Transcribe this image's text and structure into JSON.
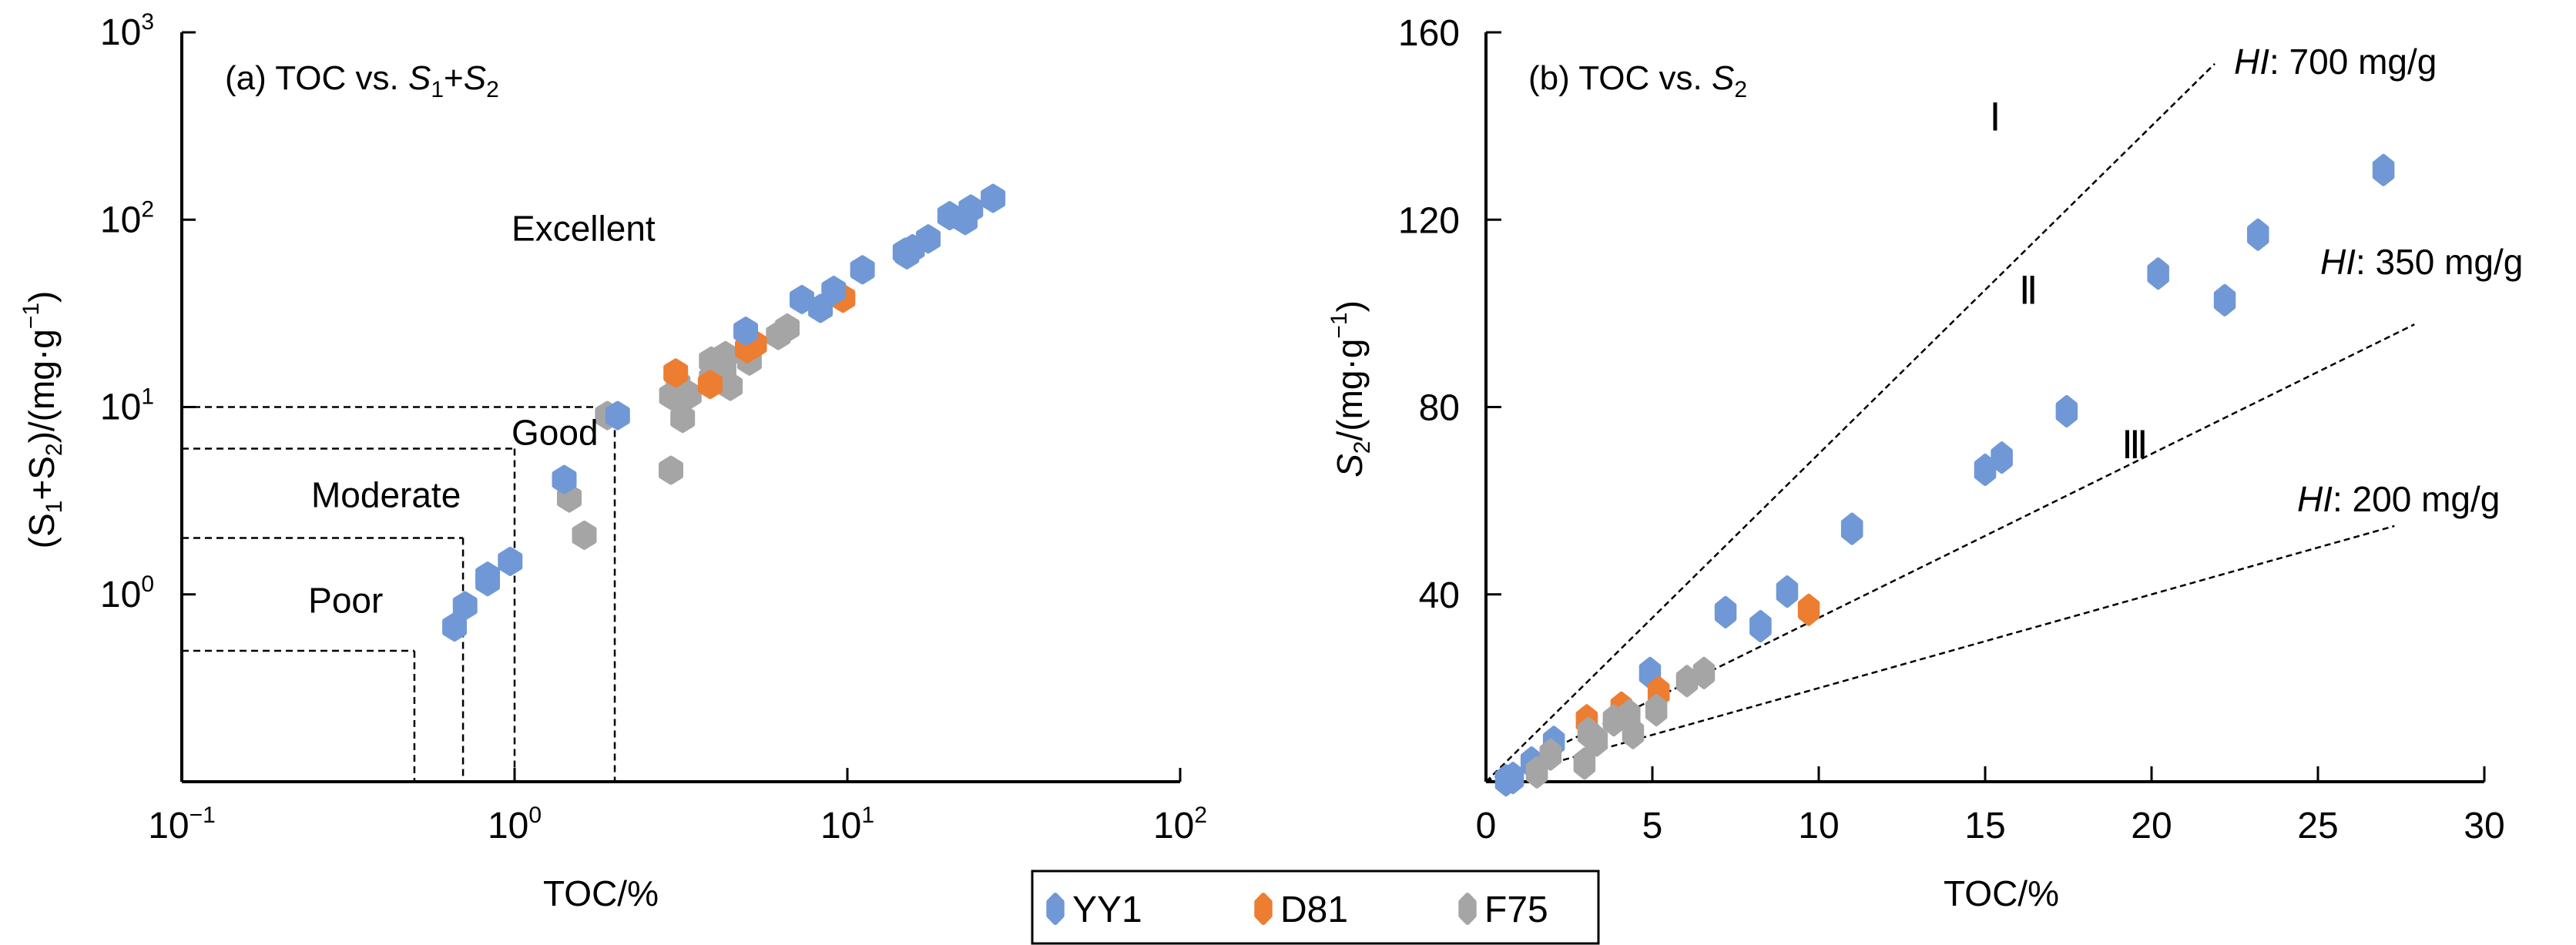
{
  "colors": {
    "YY1": "#7098D6",
    "D81": "#ED7D31",
    "F75": "#A5A5A5"
  },
  "legend": {
    "entries": [
      {
        "name": "YY1",
        "color": "#7098D6"
      },
      {
        "name": "D81",
        "color": "#ED7D31"
      },
      {
        "name": "F75",
        "color": "#A5A5A5"
      }
    ]
  },
  "chart_data": [
    {
      "type": "scatter",
      "id": "a",
      "title": {
        "prefix": "(a) TOC vs. ",
        "s1": "S",
        "s1_sub": "1",
        "plus": "+",
        "s2": "S",
        "s2_sub": "2"
      },
      "xlabel": "TOC/%",
      "ylabel": {
        "open": "(S",
        "sub1": "1",
        "mid": "+S",
        "sub2": "2",
        "close": ")/(mg·g",
        "sup": "−1",
        "end": ")"
      },
      "xscale": "log",
      "yscale": "log",
      "xlim": [
        0.1,
        100
      ],
      "ylim": [
        0.1,
        1000
      ],
      "xticks": [
        {
          "value": 0.1,
          "base": "10",
          "exp": "−1"
        },
        {
          "value": 1,
          "base": "10",
          "exp": "0"
        },
        {
          "value": 10,
          "base": "10",
          "exp": "1"
        },
        {
          "value": 100,
          "base": "10",
          "exp": "2"
        }
      ],
      "yticks": [
        {
          "value": 1,
          "base": "10",
          "exp": "0"
        },
        {
          "value": 10,
          "base": "10",
          "exp": "1"
        },
        {
          "value": 100,
          "base": "10",
          "exp": "2"
        },
        {
          "value": 1000,
          "base": "10",
          "exp": "3"
        }
      ],
      "grid": false,
      "thresholds": [
        {
          "toc": 0.5,
          "s1s2": 0.5
        },
        {
          "toc": 0.7,
          "s1s2": 2
        },
        {
          "toc": 1.0,
          "s1s2": 6
        },
        {
          "toc": 2.0,
          "s1s2": 10
        }
      ],
      "region_labels": [
        {
          "text": "Excellent",
          "toc": 2.0,
          "value": 90
        },
        {
          "text": "Good",
          "toc": 2.0,
          "value": 7.3
        },
        {
          "text": "Moderate",
          "toc": 0.5,
          "value": 3.4
        },
        {
          "text": "Poor",
          "toc": 0.49,
          "value": 0.93
        }
      ],
      "series": [
        {
          "name": "YY1",
          "points": [
            [
              0.66,
              0.67
            ],
            [
              0.71,
              0.87
            ],
            [
              0.83,
              1.17
            ],
            [
              0.83,
              1.25
            ],
            [
              0.97,
              1.5
            ],
            [
              1.41,
              4.1
            ],
            [
              2.04,
              9.0
            ],
            [
              4.95,
              25.4
            ],
            [
              7.3,
              37.5
            ],
            [
              8.3,
              33.6
            ],
            [
              9.1,
              41.9
            ],
            [
              11.1,
              54
            ],
            [
              14.9,
              67
            ],
            [
              15.1,
              65
            ],
            [
              15.7,
              70
            ],
            [
              17.5,
              79
            ],
            [
              20.3,
              105
            ],
            [
              22.6,
              99
            ],
            [
              23.5,
              114
            ],
            [
              27.4,
              130
            ]
          ]
        },
        {
          "name": "D81",
          "points": [
            [
              3.05,
              15.2
            ],
            [
              3.87,
              13.2
            ],
            [
              5.0,
              20.5
            ],
            [
              5.26,
              21.6
            ],
            [
              9.7,
              38.1
            ]
          ]
        },
        {
          "name": "F75",
          "points": [
            [
              1.46,
              3.27
            ],
            [
              1.62,
              2.07
            ],
            [
              1.9,
              9.0
            ],
            [
              2.95,
              4.6
            ],
            [
              2.96,
              11.5
            ],
            [
              3.1,
              13.3
            ],
            [
              3.2,
              8.7
            ],
            [
              3.35,
              11.6
            ],
            [
              3.9,
              17.6
            ],
            [
              3.9,
              14.2
            ],
            [
              4.26,
              15.5
            ],
            [
              4.3,
              18.8
            ],
            [
              4.45,
              12.9
            ],
            [
              5.08,
              17.6
            ],
            [
              6.2,
              24.1
            ],
            [
              6.6,
              26.4
            ]
          ]
        }
      ]
    },
    {
      "type": "scatter",
      "id": "b",
      "title": {
        "prefix": "(b) TOC vs. ",
        "s2": "S",
        "s2_sub": "2"
      },
      "xlabel": "TOC/%",
      "ylabel": {
        "s": "S",
        "sub": "2",
        "rest": "/(mg·g",
        "sup": "−1",
        "end": ")"
      },
      "xscale": "linear",
      "yscale": "linear",
      "xlim": [
        0,
        30
      ],
      "ylim": [
        0,
        160
      ],
      "xticks": [
        0,
        5,
        10,
        15,
        20,
        25,
        30
      ],
      "yticks": [
        40,
        80,
        120,
        160
      ],
      "grid": false,
      "hi_lines": [
        {
          "hi": 700,
          "label_italic": "HI",
          "label_rest": ": 700 mg/g",
          "end_toc": 21.9
        },
        {
          "hi": 350,
          "label_italic": "HI",
          "label_rest": ": 350 mg/g",
          "end_toc": 27.9
        },
        {
          "hi": 200,
          "label_italic": "HI",
          "label_rest": ": 200 mg/g",
          "end_toc": 27.3
        }
      ],
      "kerogen_labels": [
        {
          "text": "Ⅰ",
          "toc": 15.3,
          "value": 142
        },
        {
          "text": "Ⅱ",
          "toc": 16.3,
          "value": 105
        },
        {
          "text": "Ⅲ",
          "toc": 19.5,
          "value": 72
        }
      ],
      "series": [
        {
          "name": "YY1",
          "points": [
            [
              0.6,
              0.3
            ],
            [
              0.81,
              0.8
            ],
            [
              1.37,
              4.1
            ],
            [
              2.04,
              8.5
            ],
            [
              4.93,
              23.2
            ],
            [
              7.2,
              36.2
            ],
            [
              8.25,
              33.2
            ],
            [
              9.05,
              40.6
            ],
            [
              11.0,
              54.0
            ],
            [
              15.0,
              66.6
            ],
            [
              15.5,
              69.2
            ],
            [
              17.45,
              79.1
            ],
            [
              20.2,
              108.5
            ],
            [
              22.2,
              102.8
            ],
            [
              23.2,
              116.8
            ],
            [
              26.97,
              130.6
            ]
          ]
        },
        {
          "name": "D81",
          "points": [
            [
              3.03,
              13.1
            ],
            [
              4.07,
              15.8
            ],
            [
              5.19,
              19.1
            ],
            [
              9.7,
              36.7
            ]
          ]
        },
        {
          "name": "F75",
          "points": [
            [
              1.53,
              2.0
            ],
            [
              1.94,
              5.8
            ],
            [
              2.96,
              3.9
            ],
            [
              3.08,
              10.4
            ],
            [
              3.33,
              8.8
            ],
            [
              3.84,
              13.1
            ],
            [
              4.31,
              14.2
            ],
            [
              4.42,
              10.4
            ],
            [
              5.12,
              15.3
            ],
            [
              6.04,
              21.5
            ],
            [
              6.55,
              23.2
            ]
          ]
        }
      ]
    }
  ]
}
